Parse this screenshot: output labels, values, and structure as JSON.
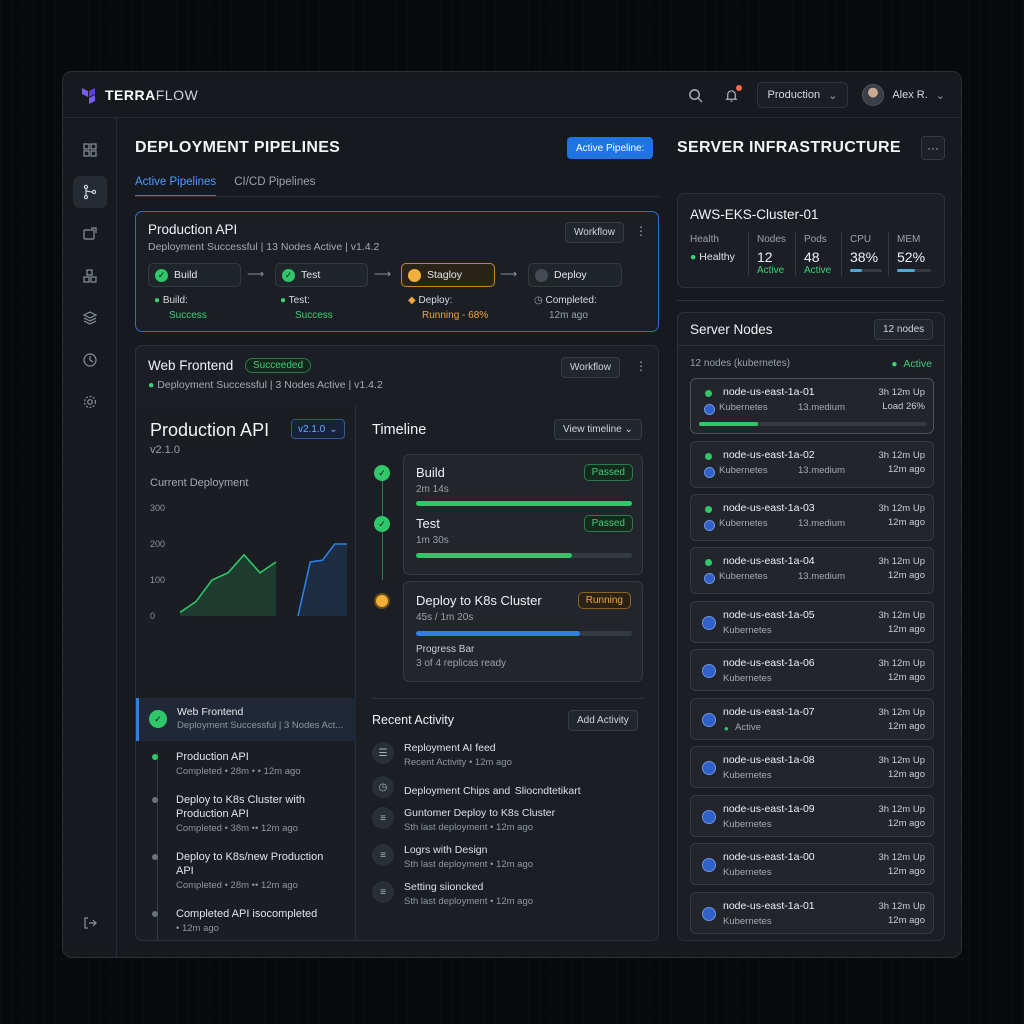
{
  "app": {
    "brand_bold": "TERRA",
    "brand_rest": "FLOW",
    "env": "Production",
    "user": "Alex R."
  },
  "pipelines": {
    "title": "DEPLOYMENT PIPELINES",
    "active_button": "Active Pipeline:",
    "tabs": [
      "Active Pipelines",
      "CI/CD Pipelines"
    ],
    "prod": {
      "title": "Production API",
      "subtitle": "Deployment Successful | 13 Nodes Active | v1.4.2",
      "workflow": "Workflow",
      "stages": [
        "Build",
        "Test",
        "Stagloy",
        "Deploy"
      ],
      "info": [
        {
          "label": "Build:",
          "value": "Success"
        },
        {
          "label": "Test:",
          "value": "Success"
        },
        {
          "label": "Deploy:",
          "value": "Running - 68%"
        },
        {
          "label": "Completed:",
          "value": "12m ago"
        }
      ]
    },
    "web": {
      "title": "Web Frontend",
      "badge": "Succeeded",
      "subtitle": "Deployment Successful | 3 Nodes Active | v1.4.2",
      "workflow": "Workflow"
    },
    "detail": {
      "title": "Production API",
      "version_sub": "v2.1.0",
      "version_btn": "v2.1.0",
      "current": "Current Deployment",
      "history": [
        {
          "title": "Web Frontend",
          "sub": "Deployment Successful | 3 Nodes Act..."
        },
        {
          "title": "Production API",
          "sub": "Completed • 28m • • 12m ago"
        },
        {
          "title": "Deploy to K8s Cluster with Production API",
          "sub": "Completed • 38m •• 12m ago"
        },
        {
          "title": "Deploy to K8s/new Production API",
          "sub": "Completed • 28m •• 12m ago"
        },
        {
          "title": "Completed API isocompleted",
          "sub": "• 12m ago"
        }
      ]
    },
    "timeline": {
      "title": "Timeline",
      "view_btn": "View timeline",
      "build": {
        "name": "Build",
        "time": "2m 14s",
        "status": "Passed"
      },
      "test": {
        "name": "Test",
        "time": "1m 30s",
        "status": "Passed"
      },
      "deploy": {
        "name": "Deploy to K8s Cluster",
        "time": "45s / 1m 20s",
        "status": "Running",
        "bar_label": "Progress Bar",
        "replicas": "3 of 4 replicas ready"
      }
    },
    "activity": {
      "title": "Recent Activity",
      "add_btn": "Add Activity",
      "items": [
        {
          "title": "Reployment AI feed",
          "sub": "Recent Activity • 12m ago"
        },
        {
          "title": "Deployment Chips and",
          "title_hl": "Sliocndtetikart",
          "sub": ""
        },
        {
          "title": "Guntomer Deploy to K8s Cluster",
          "sub": "Sth last deployment • 12m ago"
        },
        {
          "title": "Logrs with Design",
          "sub": "Sth last deployment • 12m ago"
        },
        {
          "title": "Setting siioncked",
          "sub": "Sth last deployment • 12m ago"
        }
      ]
    }
  },
  "chart_data": {
    "type": "line",
    "title": "",
    "xlabel": "",
    "ylabel": "",
    "ylim": [
      0,
      300
    ],
    "yticks": [
      "300",
      "200",
      "100",
      "0"
    ],
    "series": [
      {
        "color": "#2fc76a",
        "values": [
          10,
          40,
          100,
          120,
          170,
          120,
          150
        ]
      },
      {
        "color": "#2f7ee6",
        "values": [
          0,
          150,
          155,
          200,
          200
        ]
      }
    ]
  },
  "infra": {
    "title": "SERVER INFRASTRUCTURE",
    "cluster": {
      "name": "AWS-EKS-Cluster-01",
      "metrics": [
        {
          "label": "Health",
          "value": "Healthy"
        },
        {
          "label": "Nodes",
          "value": "12",
          "sub": "Active"
        },
        {
          "label": "Pods",
          "value": "48",
          "sub": "Active"
        },
        {
          "label": "CPU",
          "value": "38%",
          "pct": 0.38
        },
        {
          "label": "MEM",
          "value": "52%",
          "pct": 0.52
        }
      ]
    },
    "nodes_title": "Server Nodes",
    "nodes_count": "12 nodes",
    "nodes_sub": "12 nodes (kubernetes)",
    "nodes_status": "Active",
    "nodes": [
      {
        "name": "node-us-east-1a-01",
        "type": "Kubernetes",
        "size": "13.medium",
        "up": "3h 12m Up",
        "meta": "Load 26%",
        "load": 0.26
      },
      {
        "name": "node-us-east-1a-02",
        "type": "Kubernetes",
        "size": "13.medium",
        "up": "3h 12m Up",
        "meta": "12m ago"
      },
      {
        "name": "node-us-east-1a-03",
        "type": "Kubernetes",
        "size": "13.medium",
        "up": "3h 12m Up",
        "meta": "12m ago"
      },
      {
        "name": "node-us-east-1a-04",
        "type": "Kubernetes",
        "size": "13.medium",
        "up": "3h 12m Up",
        "meta": "12m ago"
      },
      {
        "name": "node-us-east-1a-05",
        "type": "Kubernetes",
        "up": "3h 12m Up",
        "meta": "12m ago"
      },
      {
        "name": "node-us-east-1a-06",
        "type": "Kubernetes",
        "up": "3h 12m Up",
        "meta": "12m ago"
      },
      {
        "name": "node-us-east-1a-07",
        "type": "Active",
        "up": "3h 12m Up",
        "meta": "12m ago"
      },
      {
        "name": "node-us-east-1a-08",
        "type": "Kubernetes",
        "up": "3h 12m Up",
        "meta": "12m ago"
      },
      {
        "name": "node-us-east-1a-09",
        "type": "Kubernetes",
        "up": "3h 12m Up",
        "meta": "12m ago"
      },
      {
        "name": "node-us-east-1a-00",
        "type": "Kubernetes",
        "up": "3h 12m Up",
        "meta": "12m ago"
      },
      {
        "name": "node-us-east-1a-01",
        "type": "Kubernetes",
        "up": "3h 12m Up",
        "meta": "12m ago"
      }
    ]
  }
}
